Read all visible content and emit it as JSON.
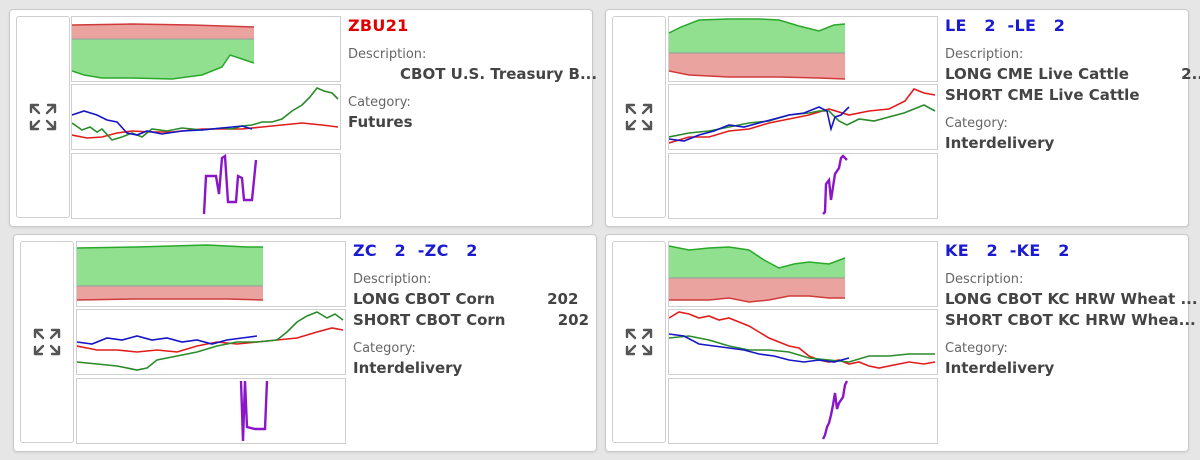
{
  "colors": {
    "red_title": "#e00000",
    "blue_title": "#1a1ad0",
    "green": "#2a8a2a",
    "blue": "#1515c8",
    "red": "#e21b1b",
    "purple": "#8a16c8",
    "fill_green": "#90e090",
    "fill_red": "#eba3a0"
  },
  "cards": [
    {
      "title": "ZBU21",
      "desc_label": "Description:",
      "desc_lines": [
        "CBOT U.S. Treasury B..."
      ],
      "cat_label": "Category:",
      "category": "Futures"
    },
    {
      "title": "LE   2  -LE   2",
      "desc_label": "Description:",
      "desc_lines": [
        "LONG CME Live Cattle          2...",
        "SHORT CME Live Cattle             ..."
      ],
      "cat_label": "Category:",
      "category": "Interdelivery"
    },
    {
      "title": "ZC   2  -ZC   2",
      "desc_label": "Description:",
      "desc_lines": [
        "LONG CBOT Corn          202",
        "SHORT CBOT Corn          202"
      ],
      "cat_label": "Category:",
      "category": "Interdelivery"
    },
    {
      "title": "KE   2  -KE   2",
      "desc_label": "Description:",
      "desc_lines": [
        "LONG CBOT KC HRW Wheat ...",
        "SHORT CBOT KC HRW Whea..."
      ],
      "cat_label": "Category:",
      "category": "Interdelivery"
    }
  ]
}
